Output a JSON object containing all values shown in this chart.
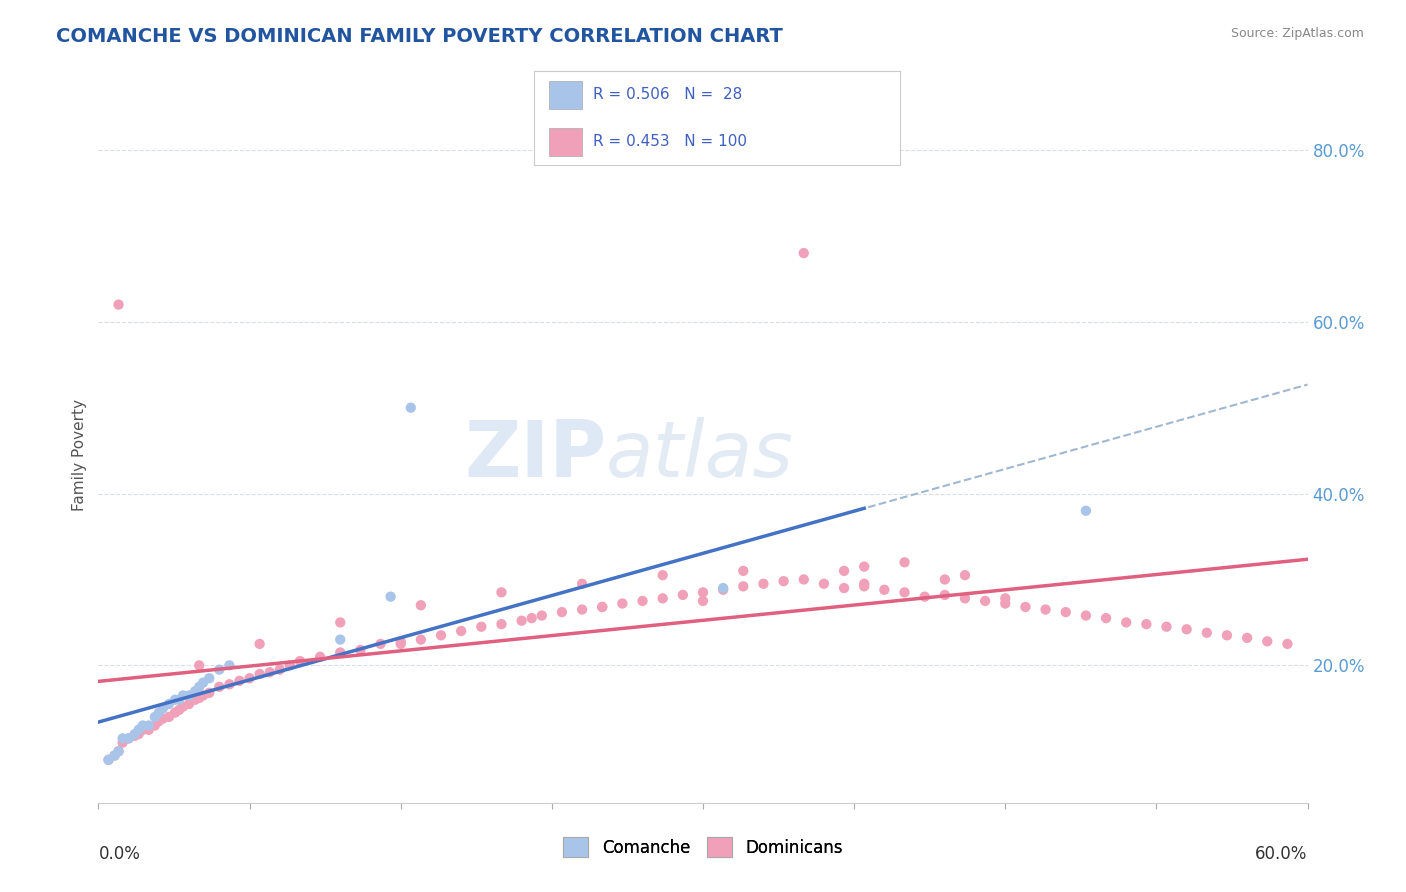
{
  "title": "COMANCHE VS DOMINICAN FAMILY POVERTY CORRELATION CHART",
  "source": "Source: ZipAtlas.com",
  "ylabel": "Family Poverty",
  "xmin": 0.0,
  "xmax": 0.6,
  "ymin": 0.04,
  "ymax": 0.85,
  "yticks": [
    0.2,
    0.4,
    0.6,
    0.8
  ],
  "ytick_labels": [
    "20.0%",
    "40.0%",
    "60.0%",
    "80.0%"
  ],
  "legend_R1": "R = 0.506",
  "legend_N1": "28",
  "legend_R2": "R = 0.453",
  "legend_N2": "100",
  "comanche_color": "#a8c4e8",
  "dominican_color": "#f0a0b8",
  "comanche_line_color": "#4472c4",
  "dominican_line_color": "#e06080",
  "dashed_line_color": "#a0b8d0",
  "title_color": "#2255a0",
  "grid_color": "#d8dde8",
  "comanche_x": [
    0.005,
    0.008,
    0.01,
    0.012,
    0.015,
    0.018,
    0.02,
    0.022,
    0.025,
    0.028,
    0.03,
    0.032,
    0.035,
    0.038,
    0.04,
    0.042,
    0.045,
    0.048,
    0.05,
    0.052,
    0.055,
    0.06,
    0.065,
    0.12,
    0.145,
    0.155,
    0.31,
    0.49
  ],
  "comanche_y": [
    0.09,
    0.095,
    0.1,
    0.115,
    0.115,
    0.12,
    0.125,
    0.13,
    0.13,
    0.14,
    0.145,
    0.15,
    0.155,
    0.16,
    0.16,
    0.165,
    0.165,
    0.17,
    0.175,
    0.18,
    0.185,
    0.195,
    0.2,
    0.23,
    0.28,
    0.5,
    0.29,
    0.38
  ],
  "dominican_x": [
    0.005,
    0.008,
    0.01,
    0.012,
    0.015,
    0.018,
    0.02,
    0.022,
    0.025,
    0.028,
    0.03,
    0.032,
    0.035,
    0.038,
    0.04,
    0.042,
    0.045,
    0.048,
    0.05,
    0.052,
    0.055,
    0.06,
    0.065,
    0.07,
    0.075,
    0.08,
    0.085,
    0.09,
    0.095,
    0.1,
    0.11,
    0.12,
    0.13,
    0.14,
    0.15,
    0.16,
    0.17,
    0.18,
    0.19,
    0.2,
    0.21,
    0.215,
    0.22,
    0.23,
    0.24,
    0.25,
    0.26,
    0.27,
    0.28,
    0.29,
    0.3,
    0.31,
    0.32,
    0.33,
    0.34,
    0.35,
    0.36,
    0.37,
    0.38,
    0.39,
    0.4,
    0.41,
    0.42,
    0.43,
    0.44,
    0.45,
    0.46,
    0.47,
    0.48,
    0.49,
    0.5,
    0.51,
    0.52,
    0.53,
    0.54,
    0.55,
    0.56,
    0.57,
    0.58,
    0.59,
    0.35,
    0.37,
    0.4,
    0.42,
    0.01,
    0.05,
    0.08,
    0.12,
    0.16,
    0.2,
    0.24,
    0.28,
    0.32,
    0.38,
    0.3,
    0.25,
    0.15,
    0.45,
    0.38,
    0.43
  ],
  "dominican_y": [
    0.09,
    0.095,
    0.1,
    0.11,
    0.115,
    0.118,
    0.12,
    0.125,
    0.125,
    0.13,
    0.135,
    0.138,
    0.14,
    0.145,
    0.148,
    0.152,
    0.155,
    0.16,
    0.162,
    0.165,
    0.168,
    0.175,
    0.178,
    0.182,
    0.185,
    0.19,
    0.192,
    0.195,
    0.2,
    0.205,
    0.21,
    0.215,
    0.218,
    0.225,
    0.228,
    0.23,
    0.235,
    0.24,
    0.245,
    0.248,
    0.252,
    0.255,
    0.258,
    0.262,
    0.265,
    0.268,
    0.272,
    0.275,
    0.278,
    0.282,
    0.285,
    0.288,
    0.292,
    0.295,
    0.298,
    0.3,
    0.295,
    0.29,
    0.292,
    0.288,
    0.285,
    0.28,
    0.282,
    0.278,
    0.275,
    0.272,
    0.268,
    0.265,
    0.262,
    0.258,
    0.255,
    0.25,
    0.248,
    0.245,
    0.242,
    0.238,
    0.235,
    0.232,
    0.228,
    0.225,
    0.68,
    0.31,
    0.32,
    0.3,
    0.62,
    0.2,
    0.225,
    0.25,
    0.27,
    0.285,
    0.295,
    0.305,
    0.31,
    0.315,
    0.275,
    0.268,
    0.225,
    0.278,
    0.295,
    0.305
  ]
}
